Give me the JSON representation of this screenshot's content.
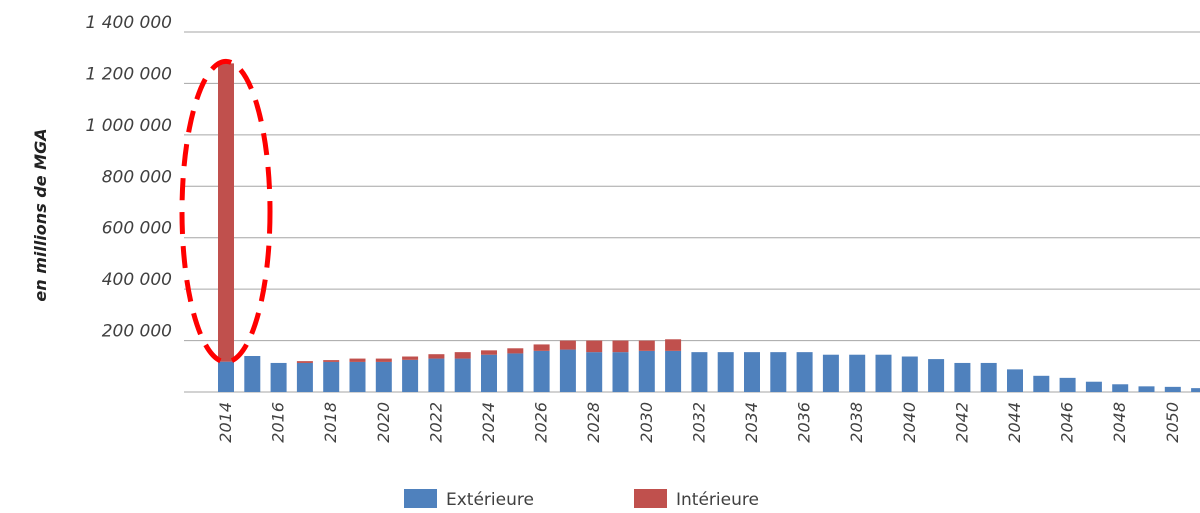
{
  "chart_data": {
    "type": "bar",
    "stacked": true,
    "ylabel": "en millions de MGA",
    "ylim": [
      0,
      1400000
    ],
    "yticks": [
      {
        "value": 200000,
        "label": "200 000"
      },
      {
        "value": 400000,
        "label": "400 000"
      },
      {
        "value": 600000,
        "label": "600 000"
      },
      {
        "value": 800000,
        "label": "800 000"
      },
      {
        "value": 1000000,
        "label": "1 000 000"
      },
      {
        "value": 1200000,
        "label": "1 200 000"
      },
      {
        "value": 1400000,
        "label": "1 400 000"
      }
    ],
    "grid": true,
    "legend_position": "bottom",
    "categories": [
      "2014",
      "2015",
      "2016",
      "2017",
      "2018",
      "2019",
      "2020",
      "2021",
      "2022",
      "2023",
      "2024",
      "2025",
      "2026",
      "2027",
      "2028",
      "2029",
      "2030",
      "2031",
      "2032",
      "2033",
      "2034",
      "2035",
      "2036",
      "2037",
      "2038",
      "2039",
      "2040",
      "2041",
      "2042",
      "2043",
      "2044",
      "2045",
      "2046",
      "2047",
      "2048",
      "2049",
      "2050",
      "2051"
    ],
    "xtick_labels": [
      "2014",
      "2016",
      "2018",
      "2020",
      "2022",
      "2024",
      "2026",
      "2028",
      "2030",
      "2032",
      "2034",
      "2036",
      "2038",
      "2040",
      "2042",
      "2044",
      "2046",
      "2048",
      "2050"
    ],
    "series": [
      {
        "name": "Extérieure",
        "color": "#4F81BD",
        "values": [
          118000,
          140000,
          113000,
          113000,
          117000,
          117000,
          117000,
          125000,
          130000,
          130000,
          145000,
          150000,
          160000,
          165000,
          155000,
          155000,
          160000,
          160000,
          155000,
          155000,
          155000,
          155000,
          155000,
          145000,
          145000,
          145000,
          138000,
          128000,
          113000,
          113000,
          88000,
          63000,
          55000,
          40000,
          30000,
          22000,
          20000,
          15000
        ]
      },
      {
        "name": "Intérieure",
        "color": "#C0504D",
        "values": [
          1160000,
          0,
          0,
          7000,
          7000,
          13000,
          13000,
          13000,
          17000,
          25000,
          17000,
          20000,
          25000,
          35000,
          45000,
          45000,
          40000,
          45000,
          0,
          0,
          0,
          0,
          0,
          0,
          0,
          0,
          0,
          0,
          0,
          0,
          0,
          0,
          0,
          0,
          0,
          0,
          0,
          0
        ]
      }
    ],
    "annotation": {
      "type": "dashed-ellipse",
      "color": "#FF0000",
      "target_category": "2014"
    }
  }
}
